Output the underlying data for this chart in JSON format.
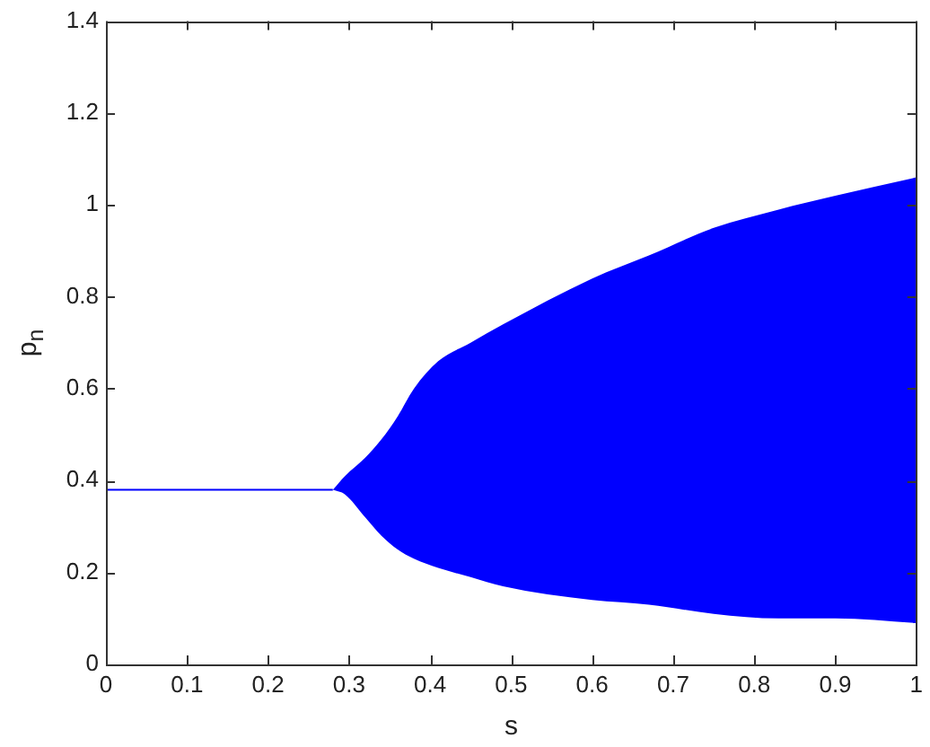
{
  "chart_data": {
    "type": "line",
    "xlabel": "s",
    "ylabel": "p$_{n}$",
    "x": [
      0,
      0.26,
      0.28,
      0.295,
      0.32,
      0.34,
      0.36,
      0.38,
      0.41,
      0.45,
      0.49,
      0.6,
      0.67,
      0.75,
      0.83,
      0.9,
      1
    ],
    "series": [
      {
        "color": "#0000ff",
        "values": [
          0.38,
          0.38,
          0.38,
          null,
          null,
          null,
          null,
          null,
          null,
          null,
          null,
          null,
          null,
          null,
          null,
          null,
          null
        ],
        "upper": [
          null,
          null,
          0.38,
          0.41,
          0.45,
          0.49,
          0.54,
          0.6,
          0.66,
          0.7,
          0.74,
          0.84,
          0.89,
          0.95,
          0.99,
          1.02,
          1.06
        ],
        "lower": [
          null,
          null,
          0.38,
          0.37,
          0.32,
          0.28,
          0.25,
          0.23,
          0.21,
          0.19,
          0.17,
          0.14,
          0.13,
          0.11,
          0.1,
          0.1,
          0.09
        ]
      }
    ],
    "xlim": [
      0,
      1
    ],
    "xticks": [
      0,
      0.1,
      0.2,
      0.3,
      0.4,
      0.5,
      0.6,
      0.7,
      0.8,
      0.9,
      1
    ],
    "ylim": [
      0,
      1.4
    ],
    "yticks": [
      0,
      0.2,
      0.4,
      0.6,
      0.8,
      1,
      1.2,
      1.4
    ]
  }
}
